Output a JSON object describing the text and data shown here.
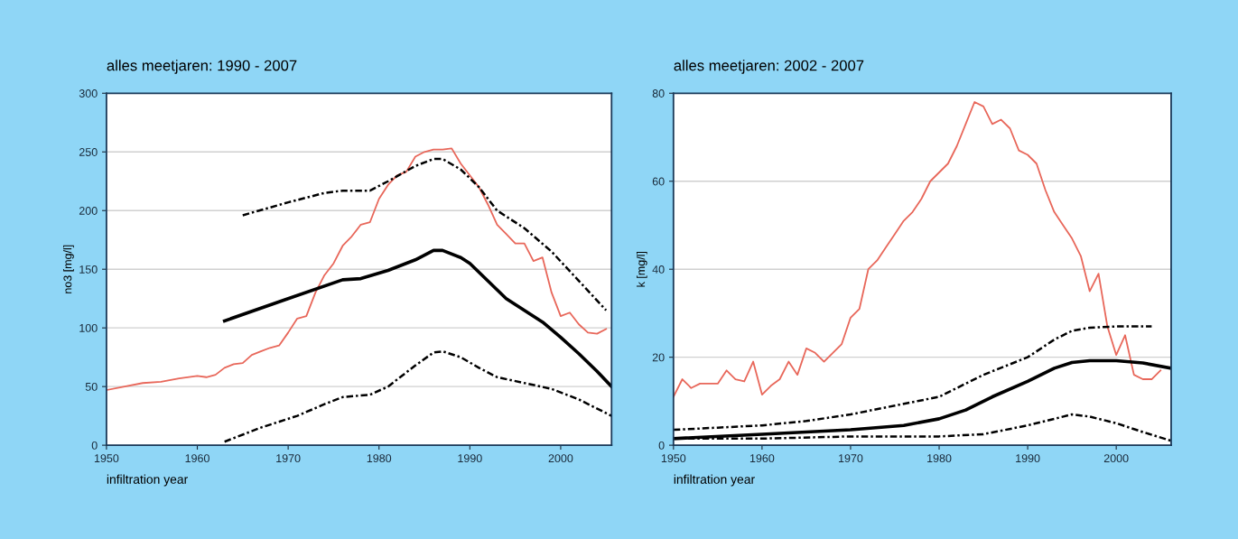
{
  "chart_data": [
    {
      "type": "line",
      "title": "alles meetjaren: 1990 - 2007",
      "xlabel": "infiltration year",
      "ylabel": "no3 [mg/l]",
      "xlim": [
        1950,
        2005.6
      ],
      "ylim": [
        0,
        300
      ],
      "xticks": [
        1950,
        1960,
        1970,
        1980,
        1990,
        2000
      ],
      "yticks": [
        0,
        50,
        100,
        150,
        200,
        250,
        300
      ],
      "grid": "y",
      "legend": false,
      "series": [
        {
          "color": "#e8675a",
          "line_style": "solid",
          "x": [
            1950,
            1952,
            1954,
            1956,
            1958,
            1960,
            1961,
            1962,
            1963,
            1964,
            1965,
            1966,
            1967,
            1968,
            1969,
            1970,
            1971,
            1972,
            1973,
            1974,
            1975,
            1976,
            1977,
            1978,
            1979,
            1980,
            1981,
            1982,
            1983,
            1984,
            1985,
            1986,
            1987,
            1988,
            1989,
            1990,
            1991,
            1992,
            1993,
            1994,
            1995,
            1996,
            1997,
            1998,
            1999,
            2000,
            2001,
            2002,
            2003,
            2004,
            2005
          ],
          "values": [
            47,
            50,
            53,
            54,
            57,
            59,
            58,
            60,
            66,
            69,
            70,
            77,
            80,
            83,
            85,
            96,
            108,
            110,
            130,
            145,
            155,
            170,
            178,
            188,
            190,
            210,
            222,
            230,
            233,
            246,
            250,
            252,
            252,
            253,
            240,
            230,
            220,
            205,
            188,
            180,
            172,
            172,
            157,
            160,
            130,
            110,
            113,
            103,
            96,
            95,
            99
          ]
        },
        {
          "color": "#000000",
          "line_style": "solid",
          "x": [
            1963,
            1970,
            1976,
            1978,
            1981,
            1984,
            1986,
            1987,
            1989,
            1990,
            1992,
            1994,
            1996,
            1998,
            2000,
            2002,
            2004,
            2005.6
          ],
          "values": [
            106,
            125,
            141,
            142,
            149,
            158,
            166,
            166,
            160,
            155,
            140,
            125,
            115,
            105,
            92,
            78,
            63,
            50
          ]
        },
        {
          "color": "#000000",
          "line_style": "dashdot",
          "x": [
            1965,
            1970,
            1974,
            1976,
            1979,
            1981,
            1984,
            1986,
            1987,
            1989,
            1991,
            1993,
            1996,
            1999,
            2002,
            2005
          ],
          "values": [
            196,
            207,
            215,
            217,
            217,
            225,
            238,
            244,
            244,
            235,
            220,
            200,
            185,
            165,
            140,
            115
          ]
        },
        {
          "color": "#000000",
          "line_style": "dashdot",
          "x": [
            1963,
            1967,
            1971,
            1974,
            1976,
            1979,
            1981,
            1984,
            1986,
            1987,
            1989,
            1991,
            1993,
            1996,
            1999,
            2002,
            2005.6
          ],
          "values": [
            3,
            15,
            25,
            35,
            41,
            43,
            50,
            68,
            79,
            80,
            75,
            66,
            58,
            53,
            48,
            39,
            25
          ]
        }
      ]
    },
    {
      "type": "line",
      "title": "alles meetjaren: 2002 - 2007",
      "xlabel": "infiltration year",
      "ylabel": "k [mg/l]",
      "xlim": [
        1950,
        2006.2
      ],
      "ylim": [
        0,
        80
      ],
      "xticks": [
        1950,
        1960,
        1970,
        1980,
        1990,
        2000
      ],
      "yticks": [
        0,
        20,
        40,
        60,
        80
      ],
      "grid": "y",
      "legend": false,
      "series": [
        {
          "color": "#e8675a",
          "line_style": "solid",
          "x": [
            1950,
            1951,
            1952,
            1953,
            1954,
            1955,
            1956,
            1957,
            1958,
            1959,
            1960,
            1961,
            1962,
            1963,
            1964,
            1965,
            1966,
            1967,
            1968,
            1969,
            1970,
            1971,
            1972,
            1973,
            1974,
            1975,
            1976,
            1977,
            1978,
            1979,
            1980,
            1981,
            1982,
            1983,
            1984,
            1985,
            1986,
            1987,
            1988,
            1989,
            1990,
            1991,
            1992,
            1993,
            1994,
            1995,
            1996,
            1997,
            1998,
            1999,
            2000,
            2001,
            2002,
            2003,
            2004,
            2005
          ],
          "values": [
            11,
            15,
            13,
            14,
            14,
            14,
            17,
            15,
            14.5,
            19,
            11.5,
            13.5,
            15,
            19,
            16,
            22,
            21,
            19,
            21,
            23,
            29,
            31,
            40,
            42,
            45,
            48,
            51,
            53,
            56,
            60,
            62,
            64,
            68,
            73,
            78,
            77,
            73,
            74,
            72,
            67,
            66,
            64,
            58,
            53,
            50,
            47,
            43,
            35,
            39,
            27,
            20.5,
            25,
            16,
            15,
            15,
            17
          ]
        },
        {
          "color": "#000000",
          "line_style": "solid",
          "x": [
            1950,
            1960,
            1970,
            1976,
            1980,
            1983,
            1986,
            1990,
            1993,
            1995,
            1997,
            2000,
            2003,
            2006.2
          ],
          "values": [
            1.5,
            2.5,
            3.5,
            4.5,
            6,
            8,
            11,
            14.5,
            17.5,
            18.8,
            19.2,
            19.2,
            18.7,
            17.5
          ]
        },
        {
          "color": "#000000",
          "line_style": "dashdot",
          "x": [
            1950,
            1955,
            1960,
            1965,
            1970,
            1975,
            1980,
            1985,
            1990,
            1993,
            1995,
            1997,
            2000,
            2004
          ],
          "values": [
            3.5,
            4,
            4.5,
            5.5,
            7,
            9,
            11,
            16,
            20,
            24,
            26,
            26.7,
            27,
            27
          ]
        },
        {
          "color": "#000000",
          "line_style": "dashdot",
          "x": [
            1950,
            1960,
            1970,
            1980,
            1985,
            1990,
            1993,
            1995,
            1997,
            2000,
            2003,
            2006.2
          ],
          "values": [
            1.5,
            1.5,
            2,
            2,
            2.5,
            4.5,
            6,
            7,
            6.5,
            5,
            3,
            1
          ]
        }
      ]
    }
  ]
}
